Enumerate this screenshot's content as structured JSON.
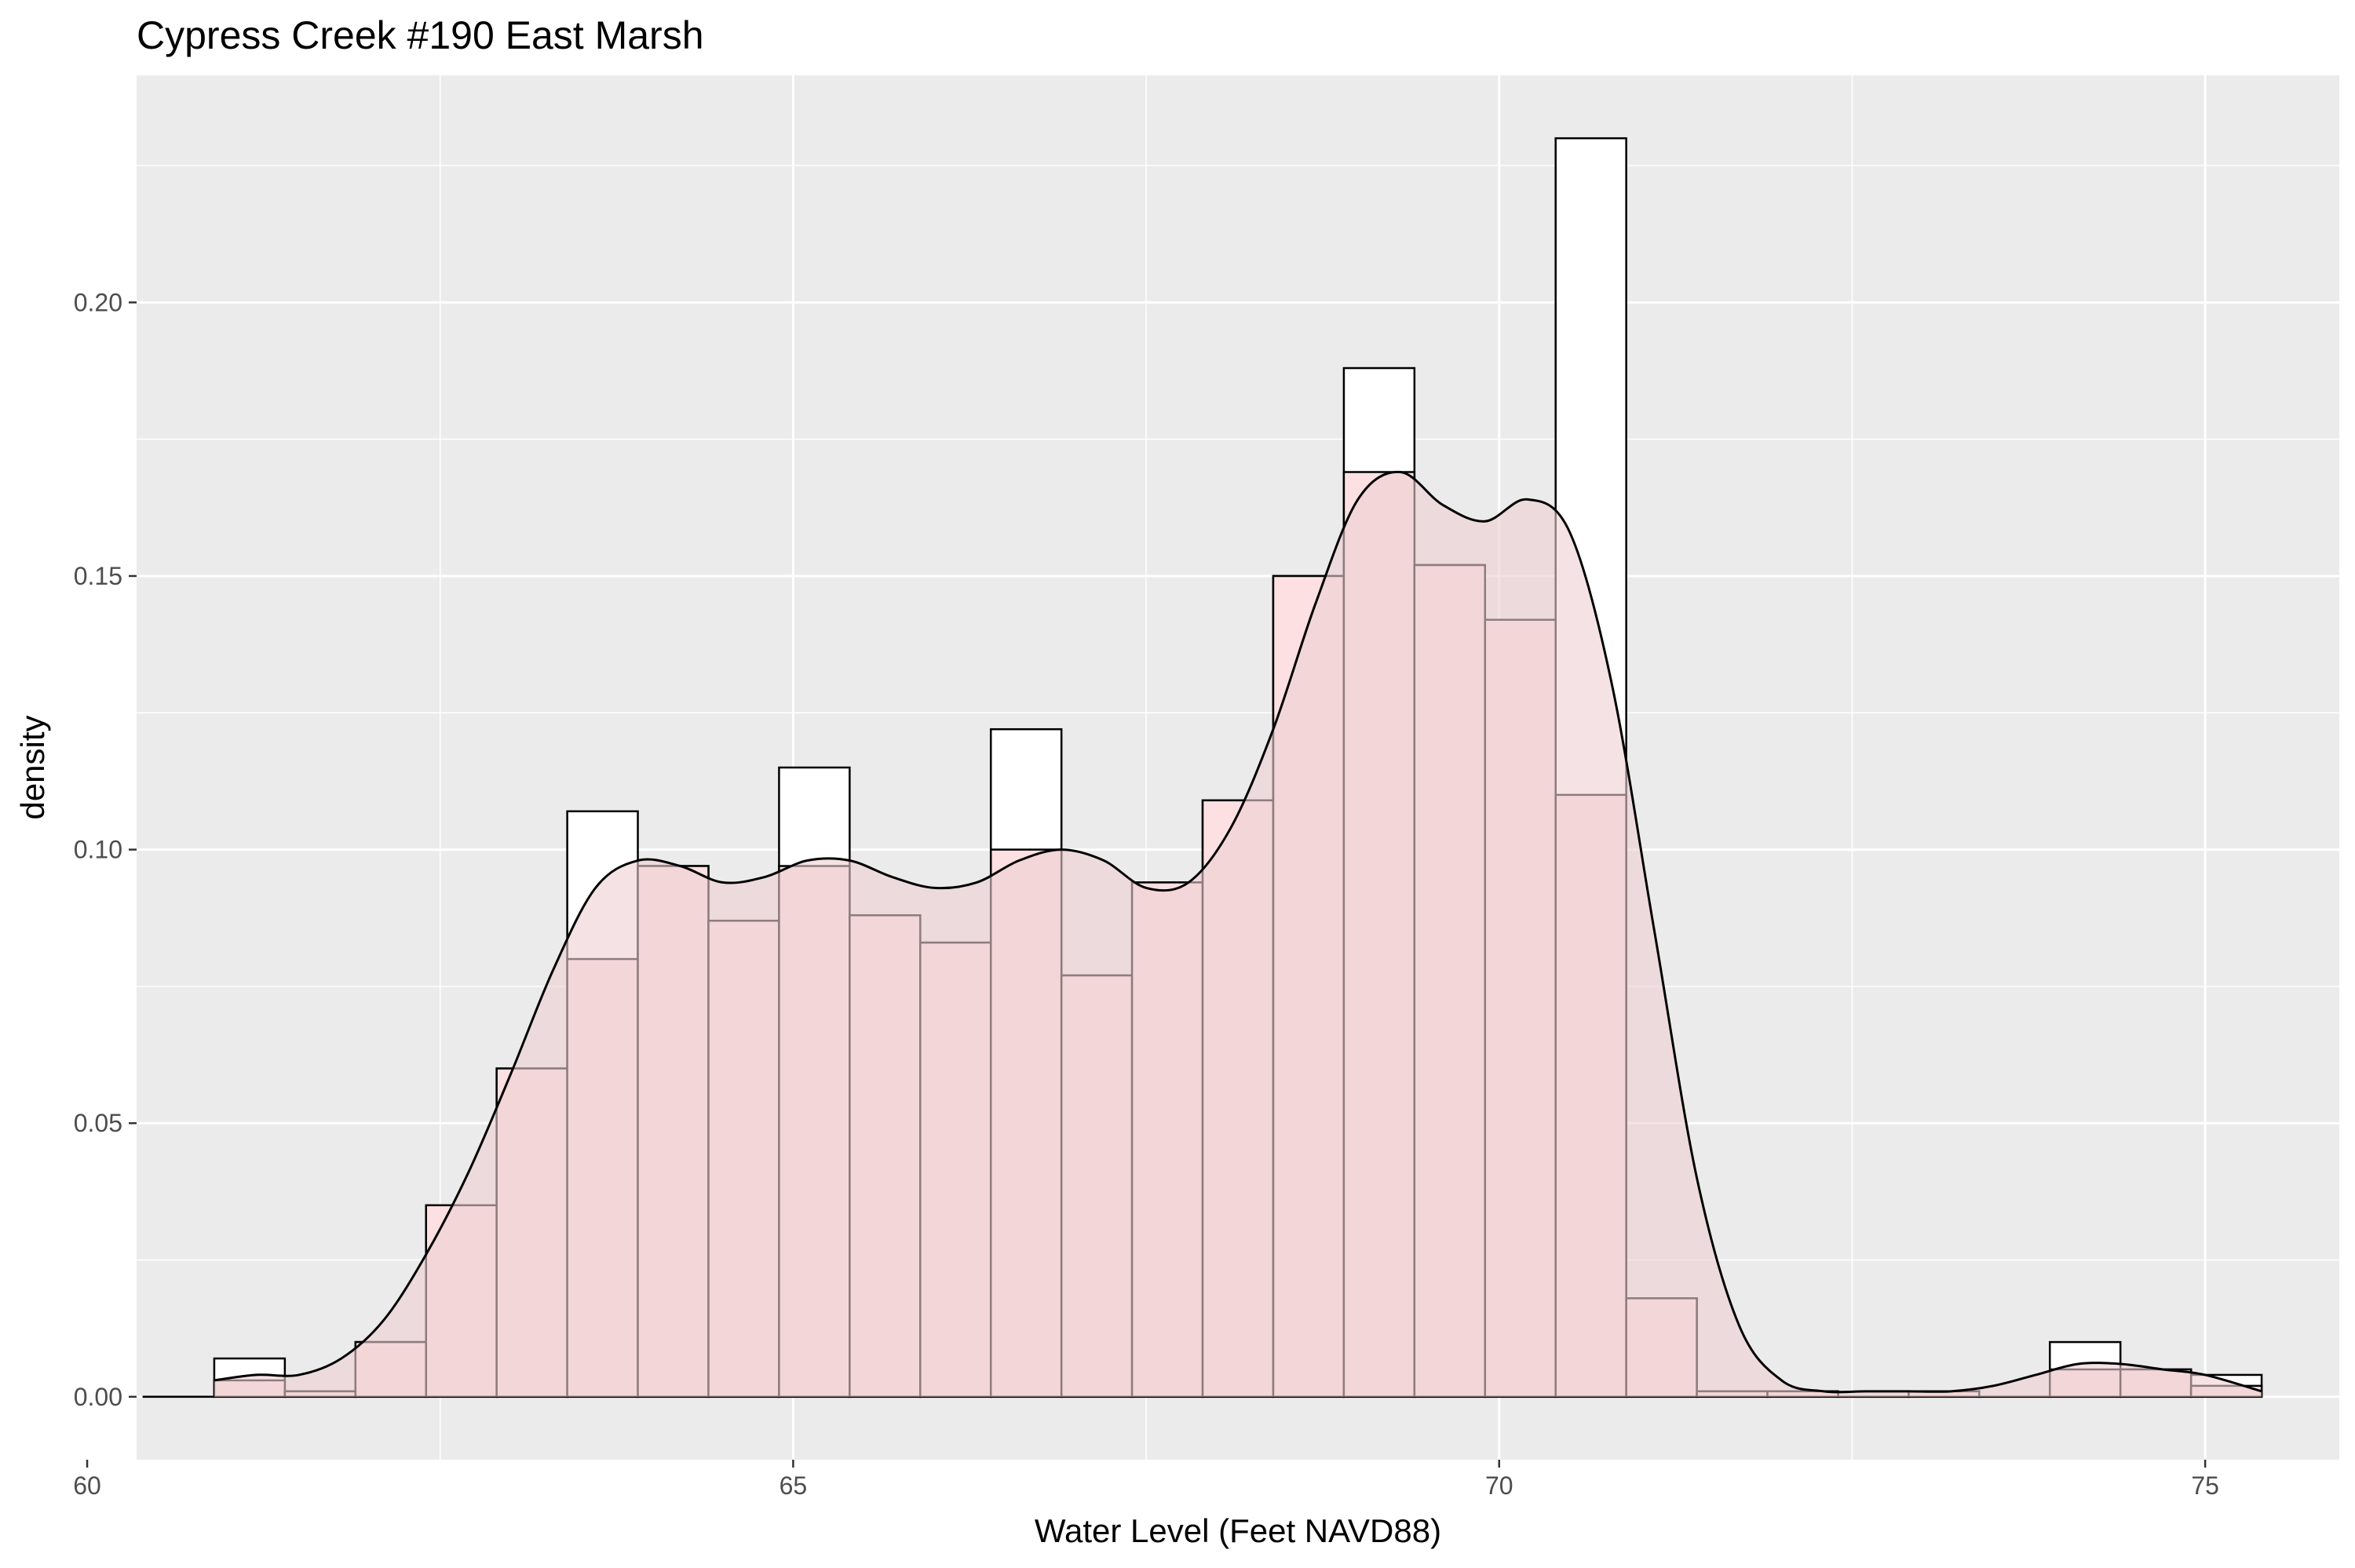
{
  "chart_data": {
    "type": "histogram",
    "title": "Cypress Creek #190 East Marsh",
    "xlabel": "Water Level (Feet NAVD88)",
    "ylabel": "density",
    "xlim": [
      60.35,
      75.95
    ],
    "ylim": [
      -0.0115,
      0.2415
    ],
    "x_ticks": [
      60,
      65,
      70,
      75
    ],
    "y_ticks": [
      0.0,
      0.05,
      0.1,
      0.15,
      0.2
    ],
    "x_tick_labels": [
      "60",
      "65",
      "70",
      "75"
    ],
    "y_tick_labels": [
      "0.00",
      "0.05",
      "0.10",
      "0.15",
      "0.20"
    ],
    "grid": true,
    "legend": "none",
    "colors": {
      "panel_background": "#ebebeb",
      "grid": "#ffffff",
      "outline_hist_fill": "#ffffff",
      "pink_hist_fill": "#fde0e2",
      "density_fill": "#eccfd2",
      "stroke": "#000000"
    },
    "bin_width": 0.5,
    "series": [
      {
        "kind": "histogram-outline",
        "bins": [
          {
            "start": 60.4,
            "end": 60.9,
            "value": 0.0
          },
          {
            "start": 60.9,
            "end": 61.4,
            "value": 0.007
          },
          {
            "start": 61.4,
            "end": 61.9,
            "value": 0.001
          },
          {
            "start": 61.9,
            "end": 62.4,
            "value": 0.01
          },
          {
            "start": 62.4,
            "end": 62.9,
            "value": 0.035
          },
          {
            "start": 62.9,
            "end": 63.4,
            "value": 0.06
          },
          {
            "start": 63.4,
            "end": 63.9,
            "value": 0.107
          },
          {
            "start": 63.9,
            "end": 64.4,
            "value": 0.097
          },
          {
            "start": 64.4,
            "end": 64.9,
            "value": 0.087
          },
          {
            "start": 64.9,
            "end": 65.4,
            "value": 0.115
          },
          {
            "start": 65.4,
            "end": 65.9,
            "value": 0.088
          },
          {
            "start": 65.9,
            "end": 66.4,
            "value": 0.083
          },
          {
            "start": 66.4,
            "end": 66.9,
            "value": 0.122
          },
          {
            "start": 66.9,
            "end": 67.4,
            "value": 0.077
          },
          {
            "start": 67.4,
            "end": 67.9,
            "value": 0.094
          },
          {
            "start": 67.9,
            "end": 68.4,
            "value": 0.109
          },
          {
            "start": 68.4,
            "end": 68.9,
            "value": 0.15
          },
          {
            "start": 68.9,
            "end": 69.4,
            "value": 0.188
          },
          {
            "start": 69.4,
            "end": 69.9,
            "value": 0.152
          },
          {
            "start": 69.9,
            "end": 70.4,
            "value": 0.142
          },
          {
            "start": 70.4,
            "end": 70.9,
            "value": 0.23
          },
          {
            "start": 70.9,
            "end": 71.4,
            "value": 0.018
          },
          {
            "start": 71.4,
            "end": 71.9,
            "value": 0.001
          },
          {
            "start": 71.9,
            "end": 72.4,
            "value": 0.001
          },
          {
            "start": 72.4,
            "end": 72.9,
            "value": 0.0
          },
          {
            "start": 72.9,
            "end": 73.4,
            "value": 0.001
          },
          {
            "start": 73.4,
            "end": 73.9,
            "value": 0.0
          },
          {
            "start": 73.9,
            "end": 74.4,
            "value": 0.01
          },
          {
            "start": 74.4,
            "end": 74.9,
            "value": 0.005
          },
          {
            "start": 74.9,
            "end": 75.4,
            "value": 0.004
          }
        ]
      },
      {
        "kind": "histogram-filled",
        "bins": [
          {
            "start": 60.4,
            "end": 60.9,
            "value": 0.0
          },
          {
            "start": 60.9,
            "end": 61.4,
            "value": 0.003
          },
          {
            "start": 61.4,
            "end": 61.9,
            "value": 0.001
          },
          {
            "start": 61.9,
            "end": 62.4,
            "value": 0.01
          },
          {
            "start": 62.4,
            "end": 62.9,
            "value": 0.035
          },
          {
            "start": 62.9,
            "end": 63.4,
            "value": 0.06
          },
          {
            "start": 63.4,
            "end": 63.9,
            "value": 0.08
          },
          {
            "start": 63.9,
            "end": 64.4,
            "value": 0.097
          },
          {
            "start": 64.4,
            "end": 64.9,
            "value": 0.087
          },
          {
            "start": 64.9,
            "end": 65.4,
            "value": 0.097
          },
          {
            "start": 65.4,
            "end": 65.9,
            "value": 0.088
          },
          {
            "start": 65.9,
            "end": 66.4,
            "value": 0.083
          },
          {
            "start": 66.4,
            "end": 66.9,
            "value": 0.1
          },
          {
            "start": 66.9,
            "end": 67.4,
            "value": 0.077
          },
          {
            "start": 67.4,
            "end": 67.9,
            "value": 0.094
          },
          {
            "start": 67.9,
            "end": 68.4,
            "value": 0.109
          },
          {
            "start": 68.4,
            "end": 68.9,
            "value": 0.15
          },
          {
            "start": 68.9,
            "end": 69.4,
            "value": 0.169
          },
          {
            "start": 69.4,
            "end": 69.9,
            "value": 0.152
          },
          {
            "start": 69.9,
            "end": 70.4,
            "value": 0.142
          },
          {
            "start": 70.4,
            "end": 70.9,
            "value": 0.11
          },
          {
            "start": 70.9,
            "end": 71.4,
            "value": 0.018
          },
          {
            "start": 71.4,
            "end": 71.9,
            "value": 0.001
          },
          {
            "start": 71.9,
            "end": 72.4,
            "value": 0.001
          },
          {
            "start": 72.4,
            "end": 72.9,
            "value": 0.0
          },
          {
            "start": 72.9,
            "end": 73.4,
            "value": 0.001
          },
          {
            "start": 73.4,
            "end": 73.9,
            "value": 0.0
          },
          {
            "start": 73.9,
            "end": 74.4,
            "value": 0.005
          },
          {
            "start": 74.4,
            "end": 74.9,
            "value": 0.005
          },
          {
            "start": 74.9,
            "end": 75.4,
            "value": 0.002
          }
        ]
      },
      {
        "kind": "density",
        "points": [
          [
            60.9,
            0.003
          ],
          [
            61.2,
            0.004
          ],
          [
            61.5,
            0.004
          ],
          [
            61.8,
            0.007
          ],
          [
            62.1,
            0.014
          ],
          [
            62.4,
            0.026
          ],
          [
            62.7,
            0.041
          ],
          [
            63.0,
            0.059
          ],
          [
            63.3,
            0.078
          ],
          [
            63.6,
            0.093
          ],
          [
            63.9,
            0.098
          ],
          [
            64.2,
            0.097
          ],
          [
            64.5,
            0.094
          ],
          [
            64.8,
            0.095
          ],
          [
            65.1,
            0.098
          ],
          [
            65.4,
            0.098
          ],
          [
            65.7,
            0.095
          ],
          [
            66.0,
            0.093
          ],
          [
            66.3,
            0.094
          ],
          [
            66.6,
            0.098
          ],
          [
            66.9,
            0.1
          ],
          [
            67.2,
            0.098
          ],
          [
            67.5,
            0.093
          ],
          [
            67.8,
            0.094
          ],
          [
            68.1,
            0.104
          ],
          [
            68.4,
            0.122
          ],
          [
            68.7,
            0.145
          ],
          [
            69.0,
            0.164
          ],
          [
            69.3,
            0.169
          ],
          [
            69.6,
            0.163
          ],
          [
            69.9,
            0.16
          ],
          [
            70.2,
            0.164
          ],
          [
            70.5,
            0.158
          ],
          [
            70.8,
            0.13
          ],
          [
            71.1,
            0.085
          ],
          [
            71.4,
            0.04
          ],
          [
            71.7,
            0.013
          ],
          [
            72.0,
            0.003
          ],
          [
            72.3,
            0.001
          ],
          [
            72.6,
            0.001
          ],
          [
            72.9,
            0.001
          ],
          [
            73.2,
            0.001
          ],
          [
            73.5,
            0.002
          ],
          [
            73.8,
            0.004
          ],
          [
            74.1,
            0.006
          ],
          [
            74.4,
            0.006
          ],
          [
            74.7,
            0.005
          ],
          [
            75.0,
            0.004
          ],
          [
            75.4,
            0.001
          ]
        ]
      }
    ]
  }
}
